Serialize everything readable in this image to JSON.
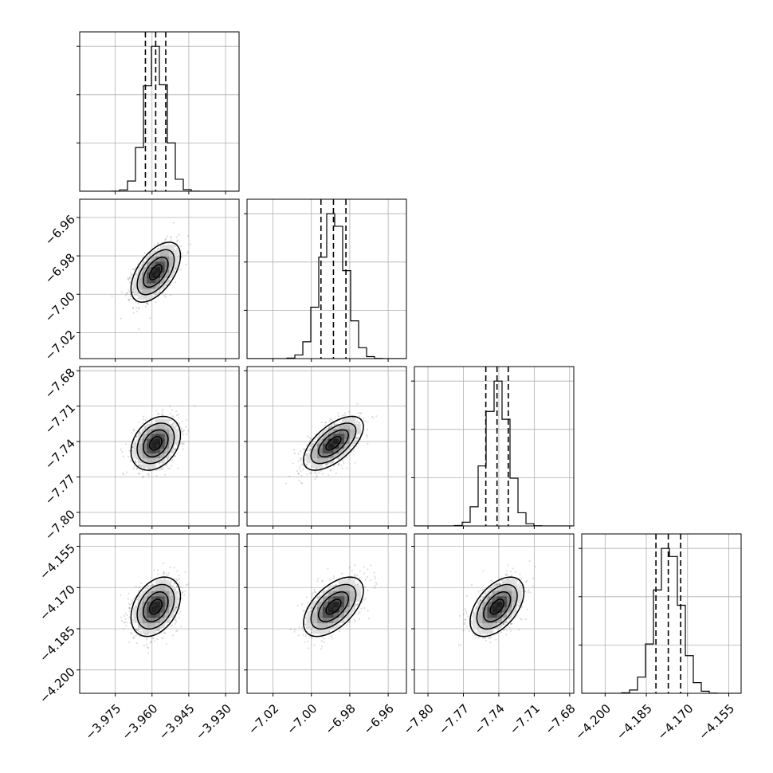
{
  "chart_data": {
    "type": "corner",
    "grid": true,
    "parameters": [
      {
        "index": 0,
        "median": -3.9585,
        "sigma": 0.0042,
        "q16": -3.9627,
        "q84": -3.9544,
        "range": [
          -3.9895,
          -3.9245
        ],
        "ticks": [
          -3.975,
          -3.96,
          -3.945,
          -3.93
        ],
        "tick_labels": [
          "−3.975",
          "−3.960",
          "−3.945",
          "−3.930"
        ]
      },
      {
        "index": 1,
        "median": -6.9885,
        "sigma": 0.0065,
        "q16": -6.995,
        "q84": -6.982,
        "range": [
          -7.0335,
          -6.9505
        ],
        "ticks": [
          -7.02,
          -7.0,
          -6.98,
          -6.96
        ],
        "tick_labels": [
          "−7.02",
          "−7.00",
          "−6.98",
          "−6.96"
        ]
      },
      {
        "index": 2,
        "median": -7.7415,
        "sigma": 0.0095,
        "q16": -7.751,
        "q84": -7.732,
        "range": [
          -7.8115,
          -7.6765
        ],
        "ticks": [
          -7.8,
          -7.77,
          -7.74,
          -7.71,
          -7.68
        ],
        "tick_labels": [
          "−7.80",
          "−7.77",
          "−7.74",
          "−7.71",
          "−7.68"
        ]
      },
      {
        "index": 3,
        "median": -4.177,
        "sigma": 0.0045,
        "q16": -4.1815,
        "q84": -4.1725,
        "range": [
          -4.2085,
          -4.1505
        ],
        "ticks": [
          -4.2,
          -4.185,
          -4.17,
          -4.155
        ],
        "tick_labels": [
          "−4.200",
          "−4.185",
          "−4.170",
          "−4.155"
        ]
      }
    ],
    "correlations": {
      "1-0": 0.55,
      "2-0": 0.3,
      "2-1": 0.62,
      "3-0": 0.35,
      "3-1": 0.55,
      "3-2": 0.5
    },
    "contour_levels_sigma": [
      0.5,
      1.0,
      1.5,
      2.0
    ],
    "histogram_bins": 20
  }
}
